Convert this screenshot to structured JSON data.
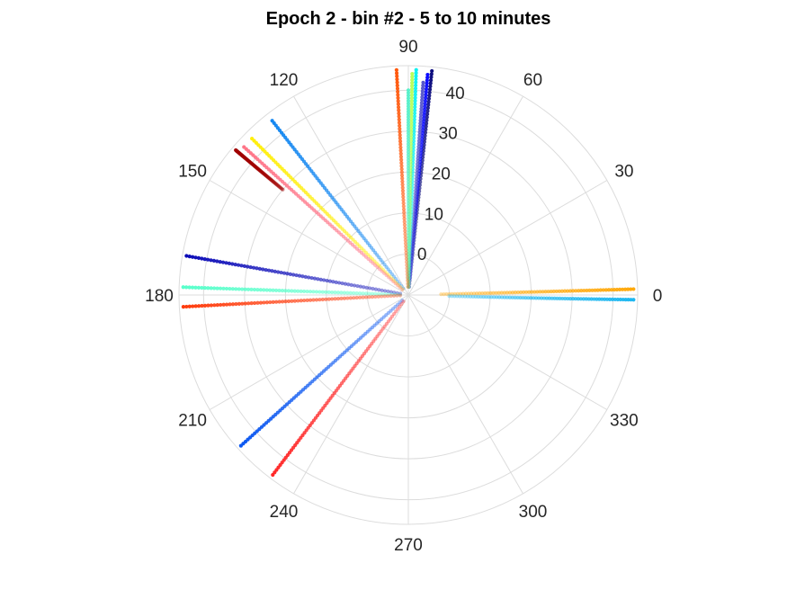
{
  "chart_data": {
    "type": "scatter",
    "coordinate_system": "polar",
    "title": "Epoch 2 - bin #2 - 5 to 10 minutes",
    "theta_unit": "degrees",
    "theta_ticks": [
      0,
      30,
      60,
      90,
      120,
      150,
      180,
      210,
      240,
      270,
      300,
      330
    ],
    "r_ticks": [
      0,
      10,
      20,
      30,
      40
    ],
    "r_tick_labels": [
      "0",
      "10",
      "20",
      "30",
      "40"
    ],
    "r_lim": [
      -10,
      46
    ],
    "grid": true,
    "series": [
      {
        "theta_start": 1.3,
        "theta_end": 1.5,
        "r_start": -2,
        "r_end": 45,
        "color": "#ffa500"
      },
      {
        "theta_start": -1.5,
        "theta_end": -1.2,
        "r_start": 0,
        "r_end": 45,
        "color": "#14b4f0"
      },
      {
        "theta_start": 84,
        "theta_end": 84,
        "r_start": -8,
        "r_end": 45,
        "color": "#000078"
      },
      {
        "theta_start": 85,
        "theta_end": 85,
        "r_start": -6,
        "r_end": 44,
        "color": "#0000ff"
      },
      {
        "theta_start": 86,
        "theta_end": 86,
        "r_start": -8,
        "r_end": 42,
        "color": "#5050c8"
      },
      {
        "theta_start": 88,
        "theta_end": 88,
        "r_start": -8,
        "r_end": 45,
        "color": "#00f0f0"
      },
      {
        "theta_start": 89,
        "theta_end": 89,
        "r_start": -8,
        "r_end": 44,
        "color": "#b4ff50"
      },
      {
        "theta_start": 90,
        "theta_end": 90,
        "r_start": -6,
        "r_end": 40,
        "color": "#50f0c8"
      },
      {
        "theta_start": 93,
        "theta_end": 93,
        "r_start": -8,
        "r_end": 45,
        "color": "#ff5000"
      },
      {
        "theta_start": 128,
        "theta_end": 128,
        "r_start": -8,
        "r_end": 44,
        "color": "#0a82f0"
      },
      {
        "theta_start": 135,
        "theta_end": 135,
        "r_start": -8,
        "r_end": 44,
        "color": "#ffee00"
      },
      {
        "theta_start": 138,
        "theta_end": 138,
        "r_start": -8,
        "r_end": 44,
        "color": "#ff6e82"
      },
      {
        "theta_start": 140,
        "theta_end": 140,
        "r_start": 30,
        "r_end": 45,
        "color": "#a00000"
      },
      {
        "theta_start": 170,
        "theta_end": 170,
        "r_start": -8,
        "r_end": 45,
        "color": "#0000b4"
      },
      {
        "theta_start": 178,
        "theta_end": 178,
        "r_start": -8,
        "r_end": 45,
        "color": "#50ffc8"
      },
      {
        "theta_start": 183,
        "theta_end": 183,
        "r_start": -8,
        "r_end": 45,
        "color": "#ff3200"
      },
      {
        "theta_start": 222,
        "theta_end": 222,
        "r_start": -8,
        "r_end": 45,
        "color": "#0050f0"
      },
      {
        "theta_start": 233,
        "theta_end": 233,
        "r_start": -8,
        "r_end": 45,
        "color": "#ff1e1e"
      }
    ]
  }
}
